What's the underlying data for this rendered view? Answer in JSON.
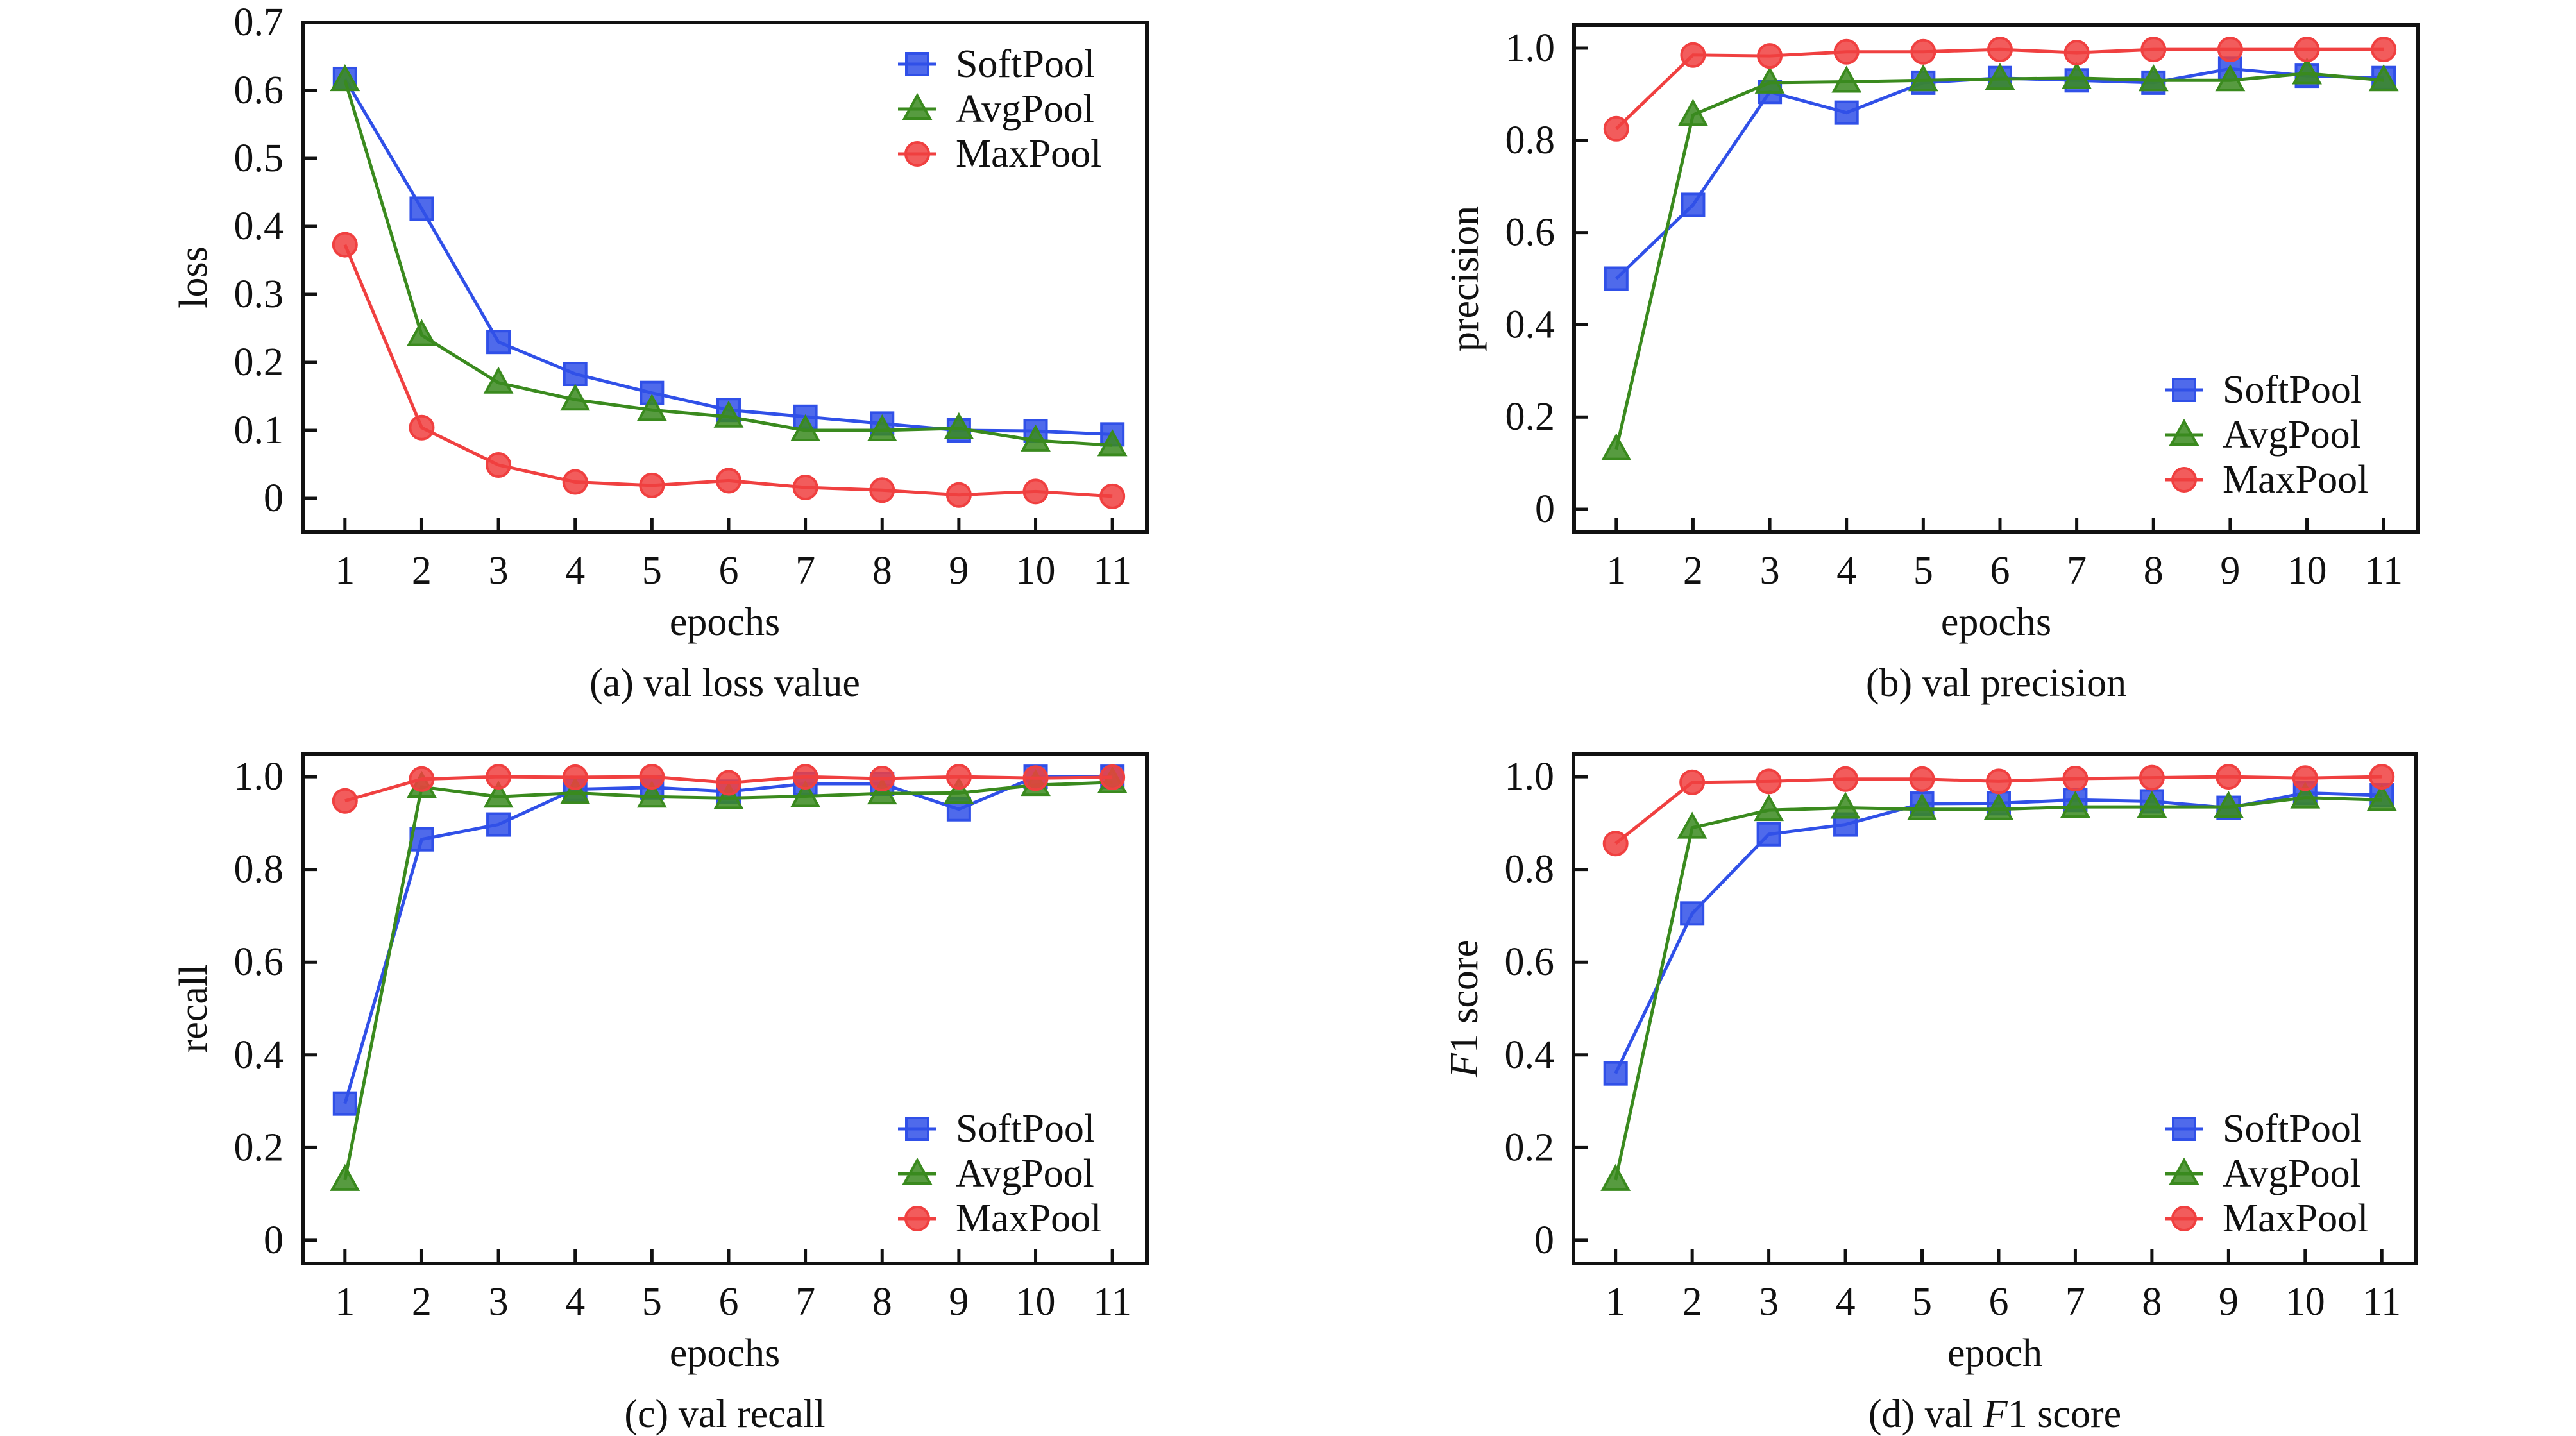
{
  "colors": {
    "SoftPool": "#3050e8",
    "AvgPool": "#3a8a1e",
    "MaxPool": "#f04040"
  },
  "chart_data": [
    {
      "type": "line",
      "id": "a",
      "caption": "(a) val loss value",
      "xlabel": "epochs",
      "ylabel": "loss",
      "ylabel_italic_prefix": "",
      "x": [
        1,
        2,
        3,
        4,
        5,
        6,
        7,
        8,
        9,
        10,
        11
      ],
      "ylim": [
        -0.05,
        0.7
      ],
      "yticks": [
        0,
        0.1,
        0.2,
        0.3,
        0.4,
        0.5,
        0.6,
        0.7
      ],
      "ytick_labels": [
        "0",
        "0.1",
        "0.2",
        "0.3",
        "0.4",
        "0.5",
        "0.6",
        "0.7"
      ],
      "legend": "top-right",
      "series": [
        {
          "name": "SoftPool",
          "marker": "square",
          "values": [
            0.617,
            0.426,
            0.23,
            0.183,
            0.155,
            0.13,
            0.12,
            0.11,
            0.1,
            0.099,
            0.094
          ]
        },
        {
          "name": "AvgPool",
          "marker": "triangle",
          "values": [
            0.615,
            0.24,
            0.17,
            0.145,
            0.13,
            0.12,
            0.1,
            0.1,
            0.103,
            0.085,
            0.078
          ]
        },
        {
          "name": "MaxPool",
          "marker": "circle",
          "values": [
            0.373,
            0.104,
            0.049,
            0.024,
            0.019,
            0.026,
            0.016,
            0.012,
            0.005,
            0.01,
            0.003
          ]
        }
      ]
    },
    {
      "type": "line",
      "id": "b",
      "caption": "(b) val precision",
      "xlabel": "epochs",
      "ylabel": "precision",
      "ylabel_italic_prefix": "",
      "x": [
        1,
        2,
        3,
        4,
        5,
        6,
        7,
        8,
        9,
        10,
        11
      ],
      "ylim": [
        -0.05,
        1.05
      ],
      "yticks": [
        0,
        0.2,
        0.4,
        0.6,
        0.8,
        1.0
      ],
      "ytick_labels": [
        "0",
        "0.2",
        "0.4",
        "0.6",
        "0.8",
        "1.0"
      ],
      "legend": "bottom-right",
      "series": [
        {
          "name": "SoftPool",
          "marker": "square",
          "values": [
            0.5,
            0.66,
            0.905,
            0.86,
            0.925,
            0.935,
            0.93,
            0.925,
            0.955,
            0.94,
            0.935
          ]
        },
        {
          "name": "AvgPool",
          "marker": "triangle",
          "values": [
            0.13,
            0.855,
            0.925,
            0.927,
            0.93,
            0.933,
            0.935,
            0.93,
            0.93,
            0.945,
            0.93
          ]
        },
        {
          "name": "MaxPool",
          "marker": "circle",
          "values": [
            0.825,
            0.985,
            0.983,
            0.992,
            0.992,
            0.997,
            0.99,
            0.997,
            0.997,
            0.997,
            0.997
          ]
        }
      ]
    },
    {
      "type": "line",
      "id": "c",
      "caption": "(c) val recall",
      "xlabel": "epochs",
      "ylabel": "recall",
      "ylabel_italic_prefix": "",
      "x": [
        1,
        2,
        3,
        4,
        5,
        6,
        7,
        8,
        9,
        10,
        11
      ],
      "ylim": [
        -0.05,
        1.05
      ],
      "yticks": [
        0,
        0.2,
        0.4,
        0.6,
        0.8,
        1.0
      ],
      "ytick_labels": [
        "0",
        "0.2",
        "0.4",
        "0.6",
        "0.8",
        "1.0"
      ],
      "legend": "bottom-right",
      "series": [
        {
          "name": "SoftPool",
          "marker": "square",
          "values": [
            0.295,
            0.865,
            0.897,
            0.973,
            0.977,
            0.968,
            0.985,
            0.985,
            0.93,
            1.0,
            1.0
          ]
        },
        {
          "name": "AvgPool",
          "marker": "triangle",
          "values": [
            0.13,
            0.978,
            0.957,
            0.965,
            0.957,
            0.954,
            0.958,
            0.964,
            0.965,
            0.982,
            0.988
          ]
        },
        {
          "name": "MaxPool",
          "marker": "circle",
          "values": [
            0.948,
            0.995,
            1.0,
            0.999,
            1.0,
            0.987,
            1.0,
            0.996,
            1.0,
            0.997,
            0.999
          ]
        }
      ]
    },
    {
      "type": "line",
      "id": "d",
      "caption": "(d) val F1 score",
      "caption_parts": [
        "(d) val ",
        "F",
        "1 score"
      ],
      "xlabel": "epoch",
      "ylabel": "1 score",
      "ylabel_italic_prefix": "F",
      "x": [
        1,
        2,
        3,
        4,
        5,
        6,
        7,
        8,
        9,
        10,
        11
      ],
      "ylim": [
        -0.05,
        1.05
      ],
      "yticks": [
        0,
        0.2,
        0.4,
        0.6,
        0.8,
        1.0
      ],
      "ytick_labels": [
        "0",
        "0.2",
        "0.4",
        "0.6",
        "0.8",
        "1.0"
      ],
      "legend": "bottom-right",
      "series": [
        {
          "name": "SoftPool",
          "marker": "square",
          "values": [
            0.36,
            0.705,
            0.876,
            0.897,
            0.942,
            0.943,
            0.95,
            0.947,
            0.933,
            0.965,
            0.96
          ]
        },
        {
          "name": "AvgPool",
          "marker": "triangle",
          "values": [
            0.13,
            0.89,
            0.928,
            0.933,
            0.93,
            0.93,
            0.935,
            0.935,
            0.935,
            0.955,
            0.95
          ]
        },
        {
          "name": "MaxPool",
          "marker": "circle",
          "values": [
            0.856,
            0.988,
            0.99,
            0.995,
            0.995,
            0.99,
            0.996,
            0.998,
            1.0,
            0.997,
            1.0
          ]
        }
      ]
    }
  ]
}
